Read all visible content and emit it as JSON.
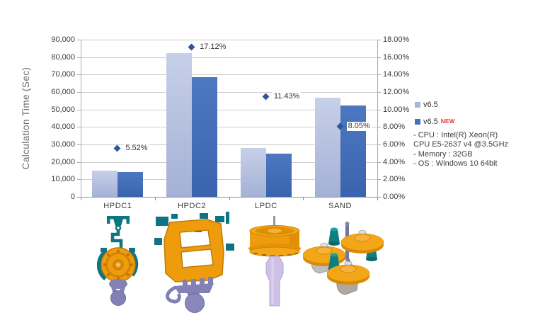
{
  "chart_data": {
    "type": "bar",
    "categories": [
      "HPDC1",
      "HPDC2",
      "LPDC",
      "SAND"
    ],
    "series": [
      {
        "name": "v6.5",
        "axis": "left",
        "values": [
          15000,
          82500,
          28000,
          56700
        ]
      },
      {
        "name": "v6.5 NEW",
        "axis": "left",
        "values": [
          14200,
          68400,
          24800,
          52100
        ]
      }
    ],
    "markers": {
      "type": "scatter-diamond",
      "axis": "right",
      "values": [
        5.52,
        17.12,
        11.43,
        8.05
      ],
      "labels": [
        "5.52%",
        "17.12%",
        "11.43%",
        "8.05%"
      ]
    },
    "left_axis": {
      "title": "Calculation Time (Sec)",
      "min": 0,
      "max": 90000,
      "step": 10000,
      "tick_labels": [
        "90,000",
        "80,000",
        "70,000",
        "60,000",
        "50,000",
        "40,000",
        "30,000",
        "20,000",
        "10,000",
        "0"
      ]
    },
    "right_axis": {
      "min": 0,
      "max": 18,
      "step": 2,
      "tick_labels": [
        "18.00%",
        "16.00%",
        "14.00%",
        "12.00%",
        "10.00%",
        "8.00%",
        "6.00%",
        "4.00%",
        "2.00%",
        "0.00%"
      ]
    },
    "grid": "horizontal",
    "legend_position": "right"
  },
  "legend": {
    "items": [
      {
        "label": "v6.5",
        "swatch": "#a9b5d8"
      },
      {
        "label": "v6.5",
        "badge": "NEW",
        "swatch": "#4472b8"
      }
    ]
  },
  "sysinfo": {
    "lines": [
      "- CPU : Intel(R) Xeon(R)",
      "CPU E5-2637  v4 @3.5GHz",
      "- Memory : 32GB",
      "- OS : Windows 10 64bit"
    ]
  },
  "colors": {
    "bar_light": "#aab6d9",
    "bar_dark": "#4472b8",
    "marker": "#30559b",
    "new_badge": "#e03030",
    "gridline": "#cdcdcd"
  },
  "parts": [
    {
      "name": "HPDC1 casting render"
    },
    {
      "name": "HPDC2 casting render"
    },
    {
      "name": "LPDC wheel casting render"
    },
    {
      "name": "SAND casting cluster render"
    }
  ]
}
